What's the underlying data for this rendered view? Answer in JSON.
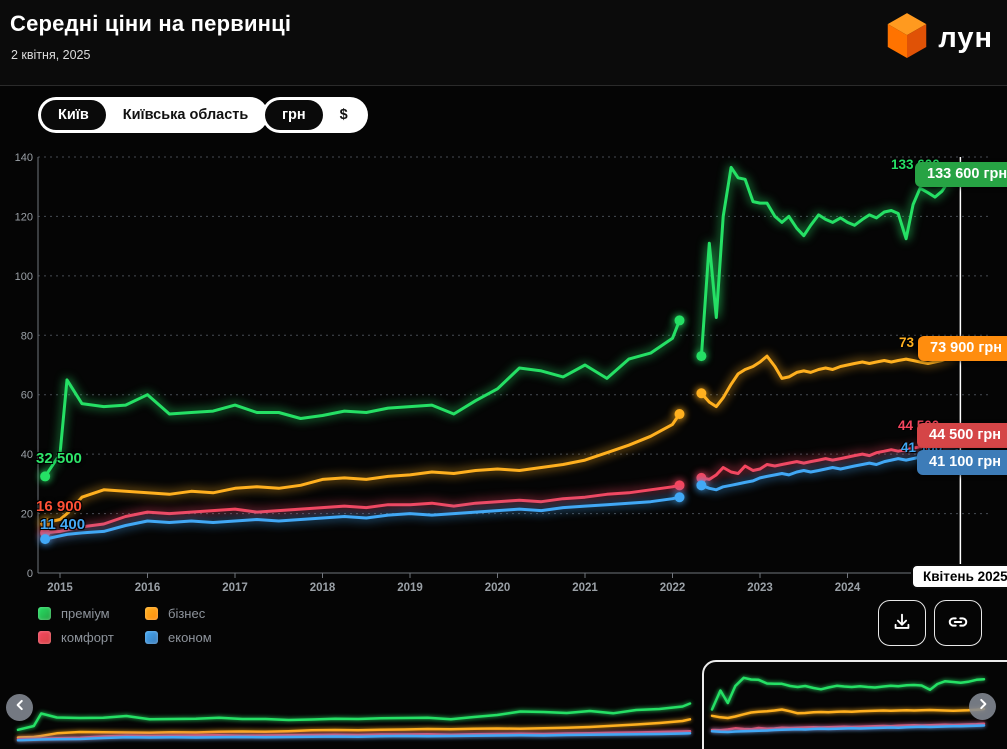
{
  "header": {
    "title": "Середні ціни на первинці",
    "date": "2 квітня, 2025",
    "logo_text": "лун",
    "logo_accent_color": "#ff7300"
  },
  "controls": {
    "region_toggle": {
      "options": [
        "Київ",
        "Київська область"
      ],
      "selected": "Київ"
    },
    "currency_toggle": {
      "options": [
        "грн",
        "$"
      ],
      "selected": "грн"
    }
  },
  "chart_data": {
    "type": "line",
    "title": "Середні ціни на первинці",
    "ylabel": "",
    "xlabel": "",
    "ylim": [
      0,
      140
    ],
    "yticks": [
      0,
      20,
      40,
      60,
      80,
      100,
      120,
      140
    ],
    "xticks": [
      2015,
      2016,
      2017,
      2018,
      2019,
      2020,
      2021,
      2022,
      2023,
      2024
    ],
    "grid": true,
    "legend_position": "bottom",
    "values_unit": "тис. грн",
    "data_gap_x": [
      2022.1,
      2022.32
    ],
    "current_x": 2025.29,
    "x": [
      2014.83,
      2015.0,
      2015.08,
      2015.25,
      2015.5,
      2015.75,
      2016.0,
      2016.25,
      2016.5,
      2016.75,
      2017.0,
      2017.25,
      2017.5,
      2017.75,
      2018.0,
      2018.25,
      2018.5,
      2018.75,
      2019.0,
      2019.25,
      2019.5,
      2019.75,
      2020.0,
      2020.25,
      2020.5,
      2020.75,
      2021.0,
      2021.25,
      2021.5,
      2021.75,
      2022.0,
      2022.08,
      2022.2,
      2022.33,
      2022.42,
      2022.5,
      2022.58,
      2022.67,
      2022.75,
      2022.83,
      2022.92,
      2023.0,
      2023.08,
      2023.17,
      2023.25,
      2023.33,
      2023.42,
      2023.5,
      2023.58,
      2023.67,
      2023.75,
      2023.83,
      2023.92,
      2024.0,
      2024.08,
      2024.17,
      2024.25,
      2024.33,
      2024.42,
      2024.5,
      2024.58,
      2024.67,
      2024.75,
      2024.83,
      2024.92,
      2025.0,
      2025.08,
      2025.17,
      2025.25
    ],
    "series": [
      {
        "name": "преміум",
        "color": "#25e065",
        "badge_color": "#27a344",
        "values": [
          32.5,
          40,
          65,
          57,
          56,
          56.5,
          60,
          53.5,
          54,
          54.5,
          56.5,
          54,
          54,
          52,
          53,
          54.5,
          54,
          55.5,
          56,
          56.5,
          53.5,
          58,
          62,
          69,
          68,
          66,
          70,
          65.5,
          72,
          74,
          79,
          85,
          null,
          73,
          111,
          86,
          120,
          136.5,
          133,
          132.5,
          125,
          124.5,
          124.5,
          120,
          118,
          120,
          116,
          113.5,
          117,
          120.5,
          119,
          118,
          119.5,
          118,
          117,
          119,
          120.5,
          119.5,
          121.5,
          122,
          121,
          112.5,
          124,
          129.5,
          128,
          126.5,
          128.5,
          132.5,
          133.6
        ]
      },
      {
        "name": "бізнес",
        "color": "#ffb01f",
        "badge_color": "#ff8d0e",
        "values": [
          16.9,
          18,
          20,
          25.5,
          28,
          27.5,
          27,
          26.5,
          27.5,
          27,
          28.5,
          29,
          28.5,
          29.5,
          31.5,
          32,
          31.5,
          32.5,
          33,
          34,
          33.5,
          34.5,
          35,
          34.5,
          35.5,
          36.5,
          38,
          40.5,
          43,
          46,
          50,
          53.5,
          null,
          60.5,
          57.5,
          56,
          59,
          63.5,
          67,
          68.5,
          69.5,
          71,
          73,
          69.5,
          65.5,
          66,
          67.5,
          68,
          67.5,
          68.5,
          69,
          68.5,
          69.5,
          70,
          70.5,
          71,
          70.5,
          71,
          71.5,
          71,
          71.5,
          72,
          71.5,
          71,
          70.5,
          71,
          71.5,
          72.5,
          73.9
        ]
      },
      {
        "name": "комфорт",
        "color": "#f5465f",
        "badge_color": "#d54547",
        "values": [
          13.5,
          14,
          14.5,
          15.5,
          16.5,
          19,
          20.5,
          20,
          20.5,
          21,
          21.5,
          20.5,
          21,
          21.5,
          22,
          22.5,
          22,
          23,
          23,
          23.5,
          22.5,
          23.5,
          24,
          24.5,
          24,
          25,
          25.5,
          26.5,
          27,
          28,
          29,
          29.5,
          null,
          32,
          31.5,
          33,
          35.5,
          34,
          33.5,
          36,
          34.5,
          35,
          36.5,
          36,
          36.5,
          37,
          37.5,
          37,
          37.5,
          38,
          38.5,
          38,
          38.5,
          39,
          39.5,
          40,
          39.5,
          40.5,
          41,
          41.5,
          41,
          41.5,
          42,
          42.5,
          42,
          42.5,
          43,
          43.5,
          44.5
        ]
      },
      {
        "name": "економ",
        "color": "#41a8f5",
        "badge_color": "#3d7cb8",
        "values": [
          11.4,
          12.5,
          13,
          13.5,
          14,
          16,
          17.5,
          17,
          17.5,
          17,
          17.5,
          18,
          17.5,
          18,
          18.5,
          19,
          18.5,
          19.5,
          20,
          19.5,
          20,
          20.5,
          21,
          21.5,
          21,
          22,
          22.5,
          23,
          23.5,
          24,
          25,
          25.5,
          null,
          29.5,
          28.5,
          28,
          29,
          29.5,
          30,
          30.5,
          31,
          32,
          32.5,
          33,
          33.5,
          33,
          34,
          34.5,
          34,
          34.5,
          35,
          35.5,
          35,
          35.5,
          36,
          36.5,
          37,
          36.5,
          37.5,
          38,
          38.5,
          38,
          38.5,
          39,
          39.5,
          39.5,
          40,
          40.5,
          41.1
        ]
      }
    ]
  },
  "overlays": {
    "start_labels": [
      {
        "text": "32 500",
        "color": "#2ee56a"
      },
      {
        "text": "16 900",
        "color": "#ff5136"
      },
      {
        "text": "11 400",
        "color": "#45a9f5"
      }
    ],
    "peek_labels": [
      "133 600",
      "73 900",
      "44 500",
      "41 100"
    ],
    "end_badges": [
      {
        "text": "133 600 грн"
      },
      {
        "text": "73 900 грн"
      },
      {
        "text": "44 500 грн"
      },
      {
        "text": "41 100 грн"
      }
    ],
    "crosshair_label": "Квітень 2025"
  },
  "icons": {
    "logo": "cube-icon",
    "download": "download-icon",
    "share": "link-icon",
    "nav_prev": "chevron-left-icon",
    "nav_next": "chevron-right-icon"
  }
}
